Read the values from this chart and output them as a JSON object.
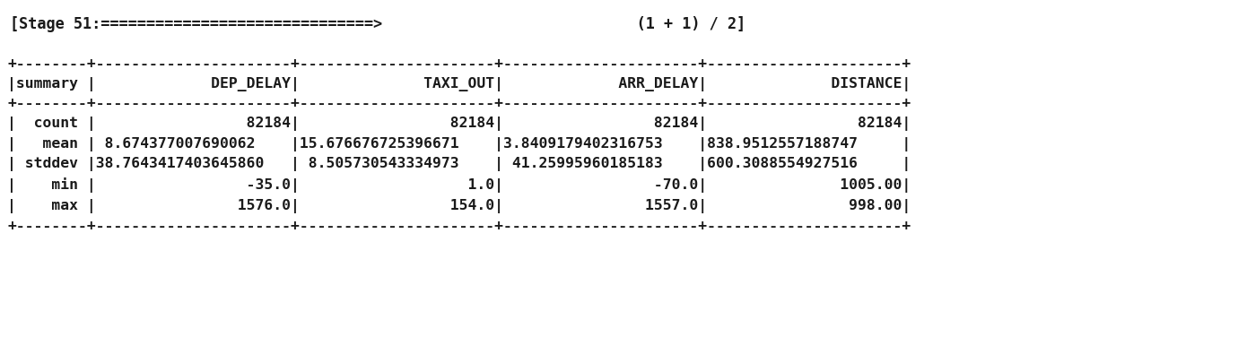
{
  "banner_text": "[Stage 51:==============================>                            (1 + 1) / 2]",
  "banner_bg": "#fce8e8",
  "table_bg": "#ffffff",
  "font_family": "monospace",
  "font_size": 11.8,
  "banner_font_size": 12.2,
  "table_lines": [
    "+---------+--------------------+--------------------+--------------------+--------------------+",
    "|summary  |           DEP_DELAY|            TAXI_OUT|           ARR_DELAY|            DISTANCE|",
    "+---------+--------------------+--------------------+--------------------+--------------------+",
    "|  count  |               82184|               82184|               82184|               82184|",
    "|   mean  | 8.674377007690062  |15.676676725396671  |3.8409179402316753  |838.9512557188747   |",
    "|  stddev |38.7643417403645860 | 8.505730543334973  | 41.25995960185183  |600.3088554927516   |",
    "|   min   |               -35.0|                 1.0|               -70.0|             1005.00|",
    "|   max   |              1576.0|               154.0|              1557.0|              998.00|",
    "+---------+--------------------+--------------------+--------------------+--------------------+"
  ]
}
